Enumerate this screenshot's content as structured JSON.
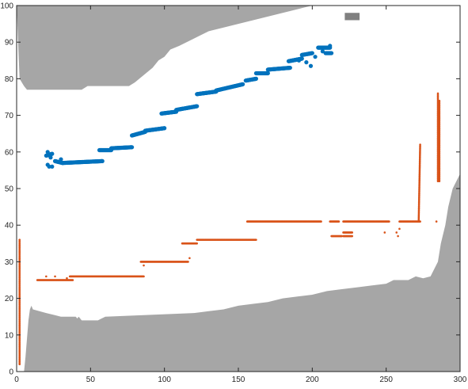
{
  "chart_data": {
    "type": "scatter",
    "title": "",
    "xlabel": "",
    "ylabel": "",
    "xlim": [
      0,
      300
    ],
    "ylim": [
      0,
      100
    ],
    "xticks": [
      0,
      50,
      100,
      150,
      200,
      250,
      300
    ],
    "yticks": [
      0,
      10,
      20,
      30,
      40,
      50,
      60,
      70,
      80,
      90,
      100
    ],
    "grid": false,
    "colors": {
      "background": "#ffffff",
      "axis": "#262626",
      "obstacle": "#a6a6a6",
      "small_block": "#808080",
      "series_1": "#0072bd",
      "series_2": "#d95319"
    },
    "areas": [
      {
        "kind": "upper-obstacle",
        "x": [
          0,
          2,
          5,
          6,
          7,
          8,
          30,
          44,
          48,
          76,
          80,
          86,
          92,
          96,
          100,
          104,
          110,
          120,
          130,
          140,
          150,
          160,
          170,
          180,
          190,
          195,
          200
        ],
        "y": [
          100,
          80,
          78,
          77.5,
          77,
          77,
          77,
          77,
          78,
          78,
          79,
          81,
          83,
          85,
          86,
          88,
          89,
          91,
          93,
          94,
          95,
          96,
          97,
          98,
          99,
          99.5,
          100
        ]
      },
      {
        "kind": "lower-obstacle",
        "x": [
          5,
          6,
          8,
          9,
          10,
          11,
          20,
          25,
          30,
          40,
          41,
          42,
          43,
          44,
          55,
          60,
          120,
          130,
          140,
          150,
          160,
          170,
          180,
          190,
          200,
          210,
          220,
          230,
          240,
          250,
          255,
          260,
          265,
          270,
          275,
          280,
          285,
          287,
          290,
          292,
          295,
          300
        ],
        "y": [
          0,
          4,
          14,
          17,
          18,
          17,
          16,
          15.5,
          15,
          15,
          14.5,
          15,
          14.5,
          14,
          14,
          15,
          16,
          16.5,
          17,
          18,
          18.5,
          19,
          20,
          20.5,
          21,
          22,
          22.5,
          23,
          23.5,
          24,
          25,
          25,
          25,
          26,
          25.5,
          26,
          30,
          35,
          40,
          45,
          50,
          54
        ]
      }
    ],
    "blocks": [
      {
        "x": [
          222,
          232
        ],
        "y": [
          96,
          98
        ]
      }
    ],
    "series": [
      {
        "segments": [
          {
            "x": [
              20,
              24
            ],
            "y": [
              59,
              59.5
            ]
          },
          {
            "x": [
              26,
              31
            ],
            "y": [
              57.5,
              57
            ]
          },
          {
            "x": [
              31,
              58
            ],
            "y": [
              57,
              57.5
            ]
          },
          {
            "x": [
              56,
              64
            ],
            "y": [
              60.5,
              60.5
            ]
          },
          {
            "x": [
              64,
              78
            ],
            "y": [
              61,
              61.3
            ]
          },
          {
            "x": [
              78,
              87
            ],
            "y": [
              64.5,
              65.5
            ]
          },
          {
            "x": [
              87,
              100
            ],
            "y": [
              65.8,
              66.5
            ]
          },
          {
            "x": [
              98,
              108
            ],
            "y": [
              70.5,
              71
            ]
          },
          {
            "x": [
              108,
              122
            ],
            "y": [
              71.5,
              72.5
            ]
          },
          {
            "x": [
              122,
              135
            ],
            "y": [
              75.8,
              76.5
            ]
          },
          {
            "x": [
              135,
              153
            ],
            "y": [
              76.8,
              78.5
            ]
          },
          {
            "x": [
              155,
              162
            ],
            "y": [
              79.5,
              80
            ]
          },
          {
            "x": [
              162,
              170
            ],
            "y": [
              81.5,
              81.5
            ]
          },
          {
            "x": [
              170,
              185
            ],
            "y": [
              82.5,
              83
            ]
          },
          {
            "x": [
              184,
              193
            ],
            "y": [
              84.8,
              85.5
            ]
          },
          {
            "x": [
              193,
              200
            ],
            "y": [
              86.5,
              87
            ]
          },
          {
            "x": [
              204,
              212
            ],
            "y": [
              88.5,
              88.5
            ]
          },
          {
            "x": [
              209,
              213
            ],
            "y": [
              87,
              87
            ]
          }
        ],
        "points": [
          [
            21,
            56.5
          ],
          [
            22,
            56
          ],
          [
            21,
            60
          ],
          [
            24,
            56
          ],
          [
            23,
            58.5
          ],
          [
            30,
            58
          ],
          [
            191,
            85
          ],
          [
            196,
            84.5
          ],
          [
            199,
            83.5
          ],
          [
            202,
            86
          ],
          [
            207,
            87.5
          ],
          [
            212,
            89
          ]
        ]
      },
      {
        "segments": [
          {
            "x": [
              2,
              2
            ],
            "y": [
              2,
              36
            ]
          },
          {
            "x": [
              14,
              38
            ],
            "y": [
              25,
              25
            ]
          },
          {
            "x": [
              36,
              86
            ],
            "y": [
              26,
              26
            ]
          },
          {
            "x": [
              84,
              116
            ],
            "y": [
              30,
              30
            ]
          },
          {
            "x": [
              112,
              122
            ],
            "y": [
              35,
              35
            ]
          },
          {
            "x": [
              122,
              162
            ],
            "y": [
              36,
              36
            ]
          },
          {
            "x": [
              156,
              206
            ],
            "y": [
              41,
              41
            ]
          },
          {
            "x": [
              212,
              218
            ],
            "y": [
              41,
              41
            ]
          },
          {
            "x": [
              213,
              220
            ],
            "y": [
              37,
              37
            ]
          },
          {
            "x": [
              221,
              227
            ],
            "y": [
              38,
              38
            ]
          },
          {
            "x": [
              221,
              227
            ],
            "y": [
              37,
              37
            ]
          },
          {
            "x": [
              221,
              252
            ],
            "y": [
              41,
              41
            ]
          },
          {
            "x": [
              259,
              273
            ],
            "y": [
              41,
              41
            ]
          },
          {
            "x": [
              272,
              273
            ],
            "y": [
              41,
              62
            ]
          },
          {
            "x": [
              285,
              285
            ],
            "y": [
              52,
              76
            ]
          },
          {
            "x": [
              286,
              286
            ],
            "y": [
              52,
              74
            ]
          }
        ],
        "points": [
          [
            20,
            26
          ],
          [
            26,
            26
          ],
          [
            34,
            25.5
          ],
          [
            86,
            29
          ],
          [
            117,
            31
          ],
          [
            249,
            38
          ],
          [
            257,
            38
          ],
          [
            258,
            37
          ],
          [
            259,
            39
          ],
          [
            284,
            41
          ]
        ]
      }
    ]
  }
}
